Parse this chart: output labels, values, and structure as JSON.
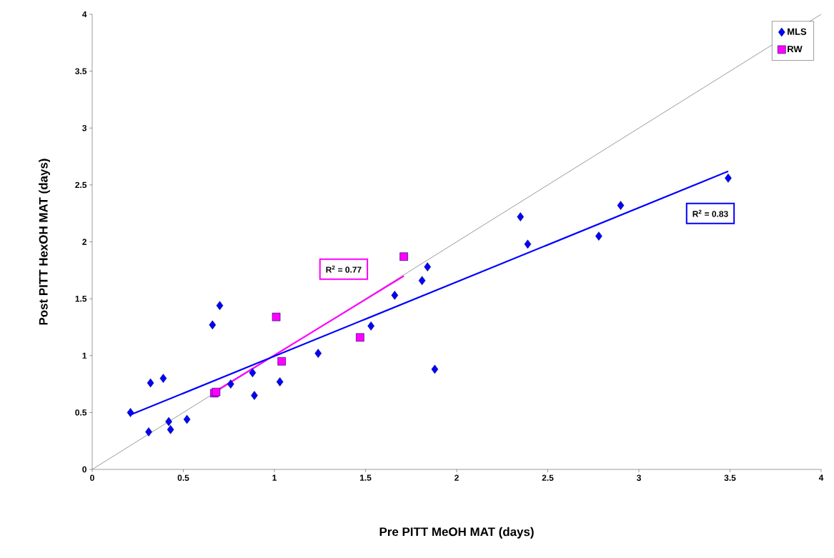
{
  "chart_data": {
    "type": "scatter",
    "xlabel": "Pre PITT MeOH MAT (days)",
    "ylabel": "Post PITT HexOH MAT (days)",
    "xlim": [
      0,
      4
    ],
    "ylim": [
      0,
      4
    ],
    "xticks": [
      0,
      0.5,
      1,
      1.5,
      2,
      2.5,
      3,
      3.5,
      4
    ],
    "yticks": [
      0,
      0.5,
      1,
      1.5,
      2,
      2.5,
      3,
      3.5,
      4
    ],
    "grid": false,
    "legend": "top right",
    "series": [
      {
        "name": "MLS",
        "marker": "diamond",
        "color": "#0000ff",
        "x": [
          0.21,
          0.31,
          0.32,
          0.39,
          0.42,
          0.43,
          0.52,
          0.66,
          0.7,
          0.76,
          0.88,
          0.89,
          1.03,
          1.24,
          1.53,
          1.66,
          1.81,
          1.84,
          1.88,
          2.35,
          2.39,
          2.78,
          2.9,
          3.49
        ],
        "values": [
          0.5,
          0.33,
          0.76,
          0.8,
          0.42,
          0.35,
          0.44,
          1.27,
          1.44,
          0.75,
          0.85,
          0.65,
          0.77,
          1.02,
          1.26,
          1.53,
          1.66,
          1.78,
          0.88,
          2.22,
          1.98,
          2.05,
          2.32,
          2.56
        ]
      },
      {
        "name": "RW",
        "marker": "square",
        "color": "#ff00ff",
        "x": [
          0.67,
          0.68,
          1.01,
          1.04,
          1.47,
          1.71
        ],
        "values": [
          0.67,
          0.68,
          1.34,
          0.95,
          1.16,
          1.87
        ]
      },
      {
        "type": "line",
        "marker": "none",
        "line_style": "solid",
        "color": "#0000ff",
        "x": [
          0.21,
          3.49
        ],
        "values": [
          0.48,
          2.62
        ]
      },
      {
        "type": "line",
        "marker": "none",
        "line_style": "solid",
        "color": "#ff00ff",
        "x": [
          0.67,
          1.71
        ],
        "values": [
          0.68,
          1.7
        ]
      },
      {
        "type": "line",
        "marker": "none",
        "line_style": "solid",
        "color": "#808080",
        "x": [
          0,
          4
        ],
        "values": [
          0,
          4
        ]
      }
    ],
    "annotations": [
      "R$^{2}$ = 0.77",
      "R$^{2}$ = 0.83"
    ]
  }
}
